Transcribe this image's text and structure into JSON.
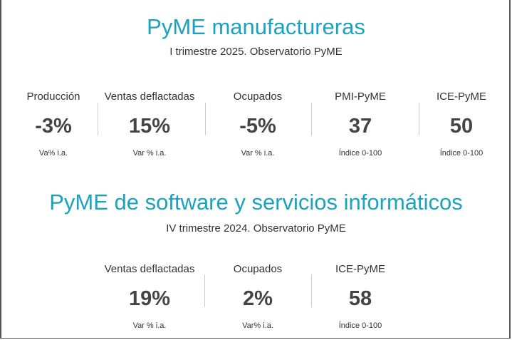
{
  "section1": {
    "title": "PyME manufactureras",
    "subtitle": "I trimestre 2025. Observatorio PyME",
    "metrics": [
      {
        "label": "Producción",
        "value": "-3%",
        "unit": "Va% i.a."
      },
      {
        "label": "Ventas deflactadas",
        "value": "15%",
        "unit": "Var % i.a."
      },
      {
        "label": "Ocupados",
        "value": "-5%",
        "unit": "Var % i.a."
      },
      {
        "label": "PMI-PyME",
        "value": "37",
        "unit": "Índice 0-100"
      },
      {
        "label": "ICE-PyME",
        "value": "50",
        "unit": "Índice 0-100"
      }
    ]
  },
  "section2": {
    "title": "PyME de software y servicios informáticos",
    "subtitle": "IV trimestre 2024. Observatorio PyME",
    "metrics": [
      {
        "label": "Ventas deflactadas",
        "value": "19%",
        "unit": "Var % i.a."
      },
      {
        "label": "Ocupados",
        "value": "2%",
        "unit": "Var% i.a."
      },
      {
        "label": "ICE-PyME",
        "value": "58",
        "unit": "Índice 0-100"
      }
    ]
  }
}
